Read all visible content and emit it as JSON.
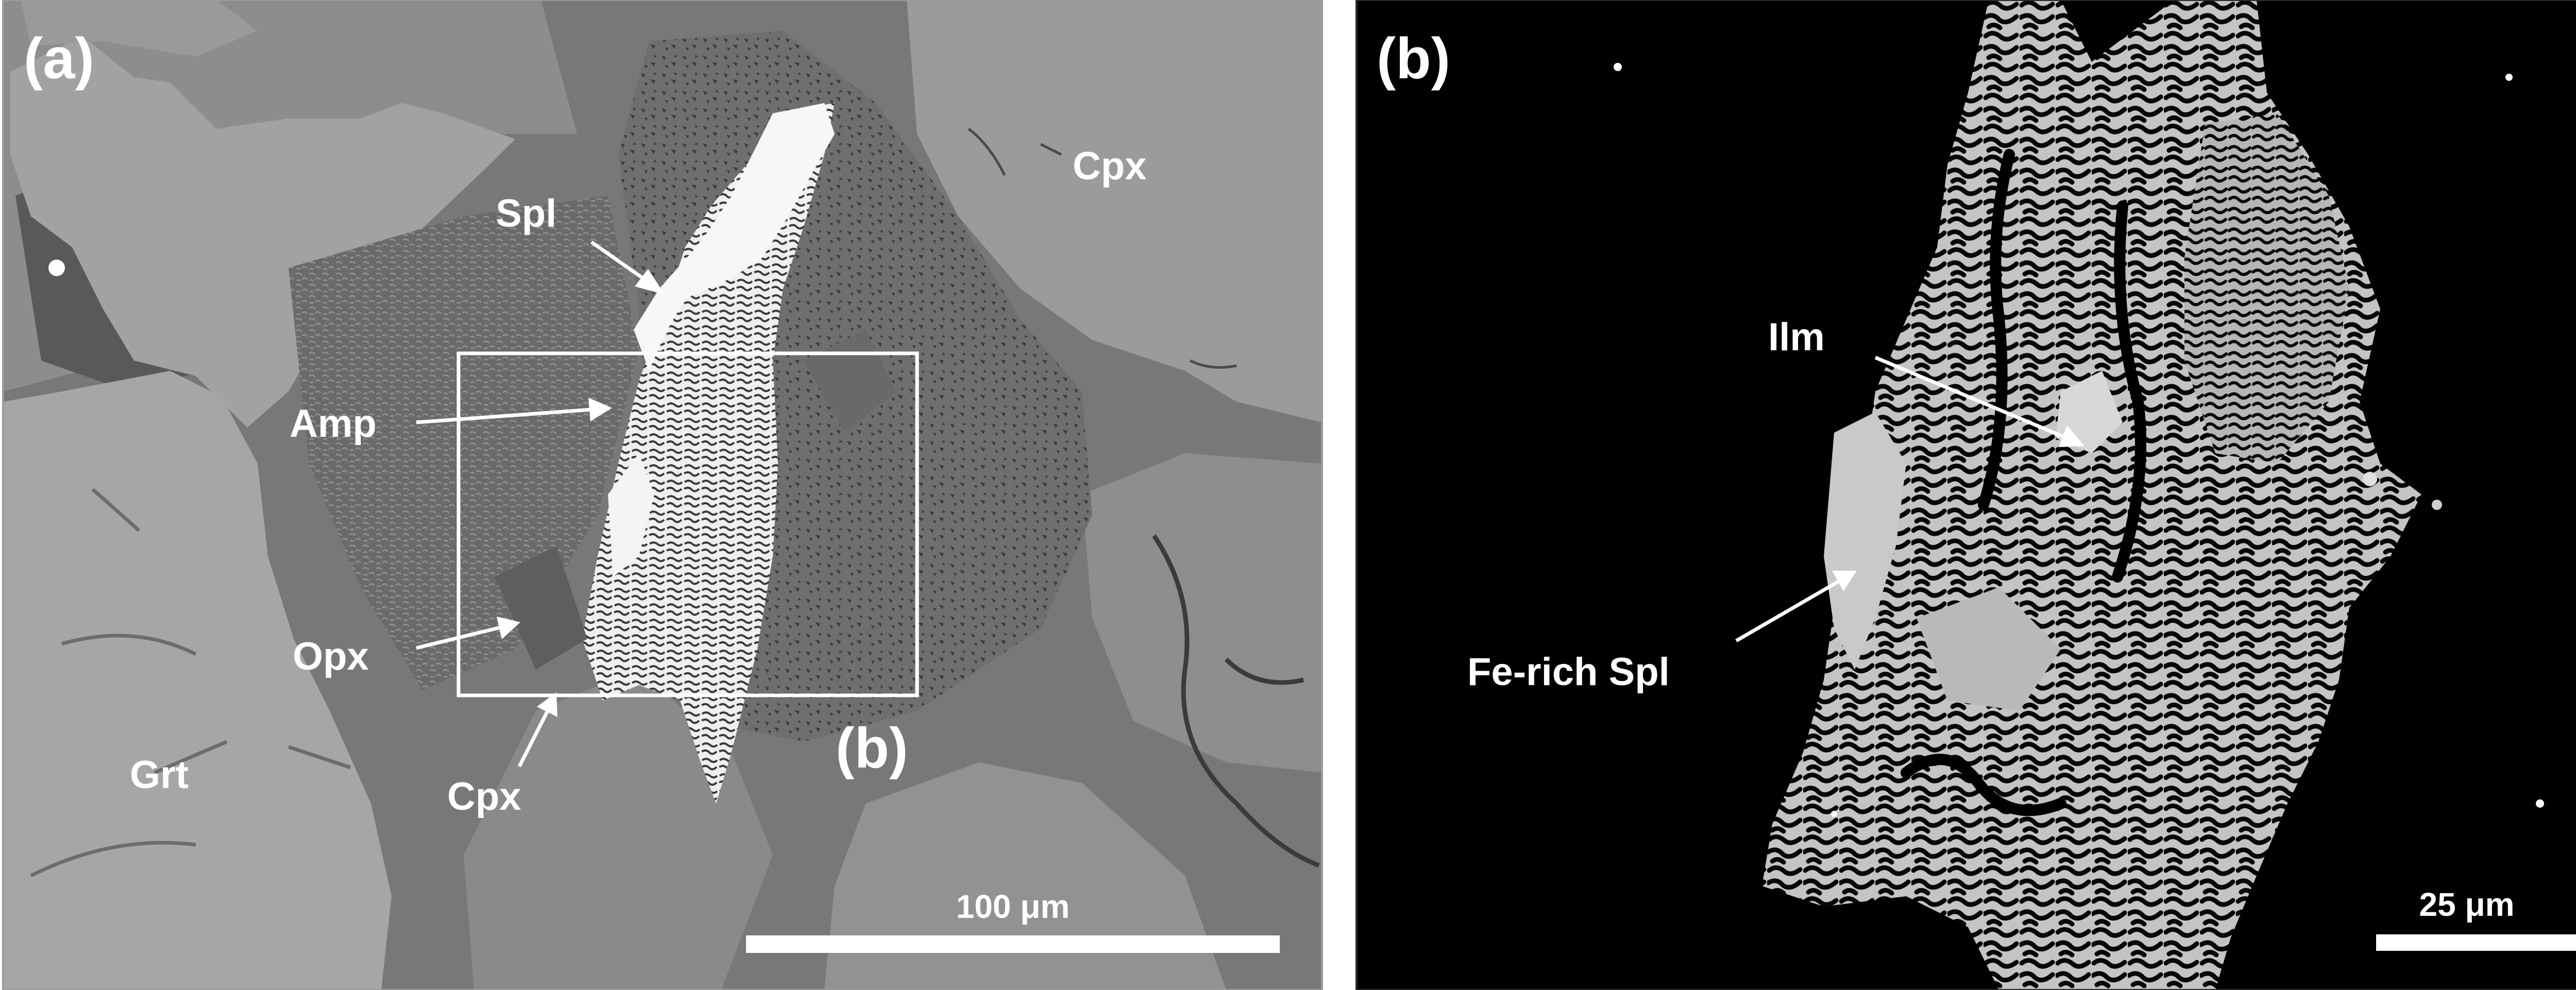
{
  "panel_a": {
    "tag": "(a)",
    "inset_tag": "(b)",
    "scale_bar_label": "100 μm",
    "minerals": {
      "spl": "Spl",
      "amp": "Amp",
      "opx": "Opx",
      "cpx_lower": "Cpx",
      "cpx_upper": "Cpx",
      "grt": "Grt"
    }
  },
  "panel_b": {
    "tag": "(b)",
    "scale_bar_label": "25 μm",
    "minerals": {
      "ilm": "Ilm",
      "fe_rich_spl": "Fe-rich Spl"
    }
  },
  "colors": {
    "annotation": "#ffffff",
    "panel_a_matrix": "#7d7d7d",
    "panel_a_garnet": "#a6a6a6",
    "panel_a_cpx": "#9b9b9b",
    "panel_b_background": "#000000",
    "panel_b_ilmenite": "#bdbdbd"
  }
}
